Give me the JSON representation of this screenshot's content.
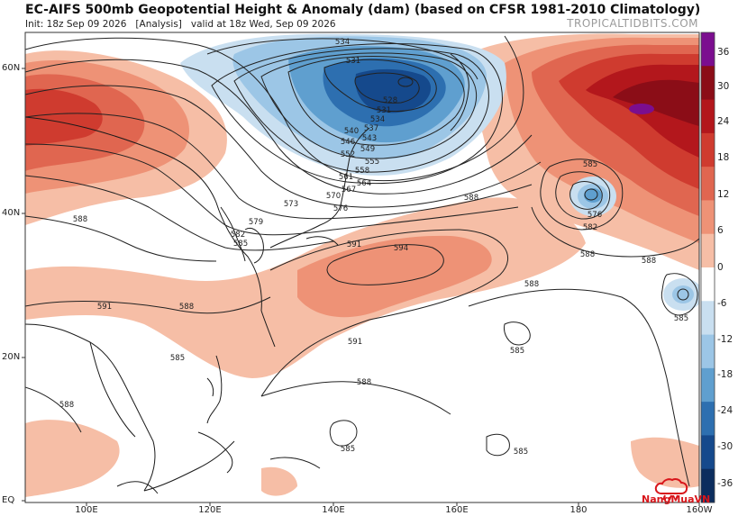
{
  "header": {
    "title": "EC-AIFS 500mb Geopotential Height & Anomaly (dam) (based on CFSR 1981-2010 Climatology)",
    "subtitle": "Init: 18z Sep 09 2026   [Analysis]   valid at 18z Wed, Sep 09 2026",
    "brand": "TROPICALTIDBITS.COM"
  },
  "map": {
    "lat_labels": [
      "60N",
      "40N",
      "20N",
      "EQ"
    ],
    "lon_labels": [
      "100E",
      "120E",
      "140E",
      "160E",
      "180",
      "160W"
    ],
    "contour_labels": [
      "534",
      "531",
      "528",
      "531",
      "534",
      "537",
      "540",
      "543",
      "546",
      "549",
      "552",
      "555",
      "558",
      "561",
      "564",
      "567",
      "570",
      "573",
      "576",
      "579",
      "582",
      "585",
      "588",
      "591",
      "594",
      "585",
      "576",
      "582",
      "588",
      "585",
      "591",
      "588",
      "585",
      "585",
      "585",
      "588",
      "588",
      "588",
      "591",
      "588",
      "585",
      "588"
    ],
    "colors": {
      "ocean": "#ffffff",
      "coast": "#1a1a1a",
      "contour": "#222222"
    }
  },
  "colorbar": {
    "labels": [
      "36",
      "30",
      "24",
      "18",
      "12",
      "6",
      "0",
      "-6",
      "-12",
      "-18",
      "-24",
      "-30",
      "-36"
    ],
    "colors": [
      "#7b0e8f",
      "#8b0d17",
      "#b3171c",
      "#cf3b2f",
      "#e06650",
      "#ee9276",
      "#f6bea6",
      "#ffffff",
      "#c9dff0",
      "#9cc6e6",
      "#5f9fcf",
      "#2d6fb0",
      "#15498c",
      "#0c2d5e"
    ]
  },
  "watermark": {
    "text": "NangMuaVN"
  }
}
